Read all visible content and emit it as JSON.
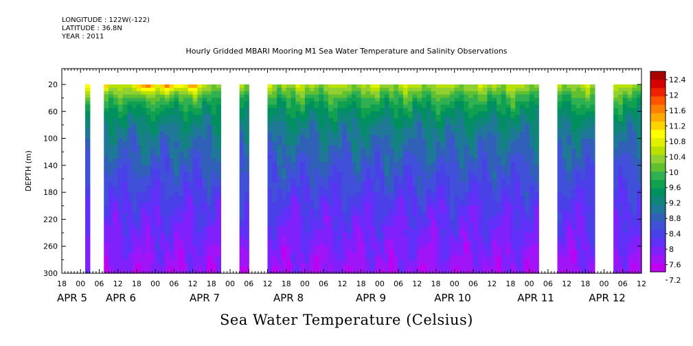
{
  "header": {
    "longitude": "LONGITUDE : 122W(-122)",
    "latitude": "LATITUDE : 36.8N",
    "year": "YEAR : 2011"
  },
  "chart_data": {
    "type": "heatmap",
    "title": "Hourly Gridded MBARI Mooring M1 Sea Water Temperature and Salinity Observations",
    "caption": "Sea Water Temperature (Celsius)",
    "ylabel": "DEPTH (m)",
    "yticks": [
      "20",
      "60",
      "100",
      "140",
      "180",
      "220",
      "260",
      "300"
    ],
    "ylim": [
      300,
      20
    ],
    "hour_ticks": [
      "18",
      "00",
      "06",
      "12",
      "18",
      "00",
      "06",
      "12",
      "18",
      "00",
      "06",
      "12",
      "18",
      "00",
      "06",
      "12",
      "18",
      "00",
      "06",
      "12",
      "18",
      "00",
      "06",
      "12",
      "18",
      "00",
      "06",
      "12",
      "18",
      "00",
      "06",
      "12"
    ],
    "date_labels": [
      "APR  5",
      "APR  6",
      "APR  7",
      "APR  8",
      "APR  9",
      "APR 10",
      "APR 11",
      "APR 12"
    ],
    "x_range_hours": [
      -6,
      180
    ],
    "gaps_hours": [
      [
        2,
        7
      ],
      [
        45,
        50
      ],
      [
        54,
        60
      ],
      [
        147,
        153
      ],
      [
        164,
        170
      ]
    ],
    "colorbar": {
      "labels": [
        "12.4",
        "12",
        "11.6",
        "11.2",
        "10.8",
        "10.4",
        "10",
        "9.6",
        "9.2",
        "8.8",
        "8.4",
        "8",
        "7.6",
        "7.2"
      ],
      "colors": [
        "#a80000",
        "#d40000",
        "#ee2200",
        "#ff5500",
        "#ff7f00",
        "#ffaa00",
        "#ffd500",
        "#ffff00",
        "#e0f000",
        "#b8e000",
        "#90d030",
        "#60c030",
        "#30b050",
        "#10a050",
        "#00905f",
        "#10857a",
        "#207898",
        "#3060b8",
        "#4050d8",
        "#4a40e8",
        "#6030f8",
        "#8020fb",
        "#a014f8",
        "#c000f0"
      ],
      "min": 7.2,
      "max": 12.4
    },
    "temperature_profile": {
      "depths_m": [
        20,
        40,
        60,
        80,
        100,
        120,
        140,
        160,
        180,
        200,
        220,
        240,
        260,
        280,
        300
      ],
      "values_c": [
        10.3,
        9.7,
        9.3,
        9.0,
        8.8,
        8.65,
        8.5,
        8.35,
        8.2,
        8.05,
        7.95,
        7.85,
        7.75,
        7.65,
        7.55
      ]
    },
    "surface_warm_events": [
      {
        "hour": 20,
        "peak_c": 12.0
      },
      {
        "hour": 28,
        "peak_c": 11.6
      },
      {
        "hour": 35,
        "peak_c": 11.2
      },
      {
        "hour": 5.5,
        "peak_c": 12.0
      }
    ]
  }
}
